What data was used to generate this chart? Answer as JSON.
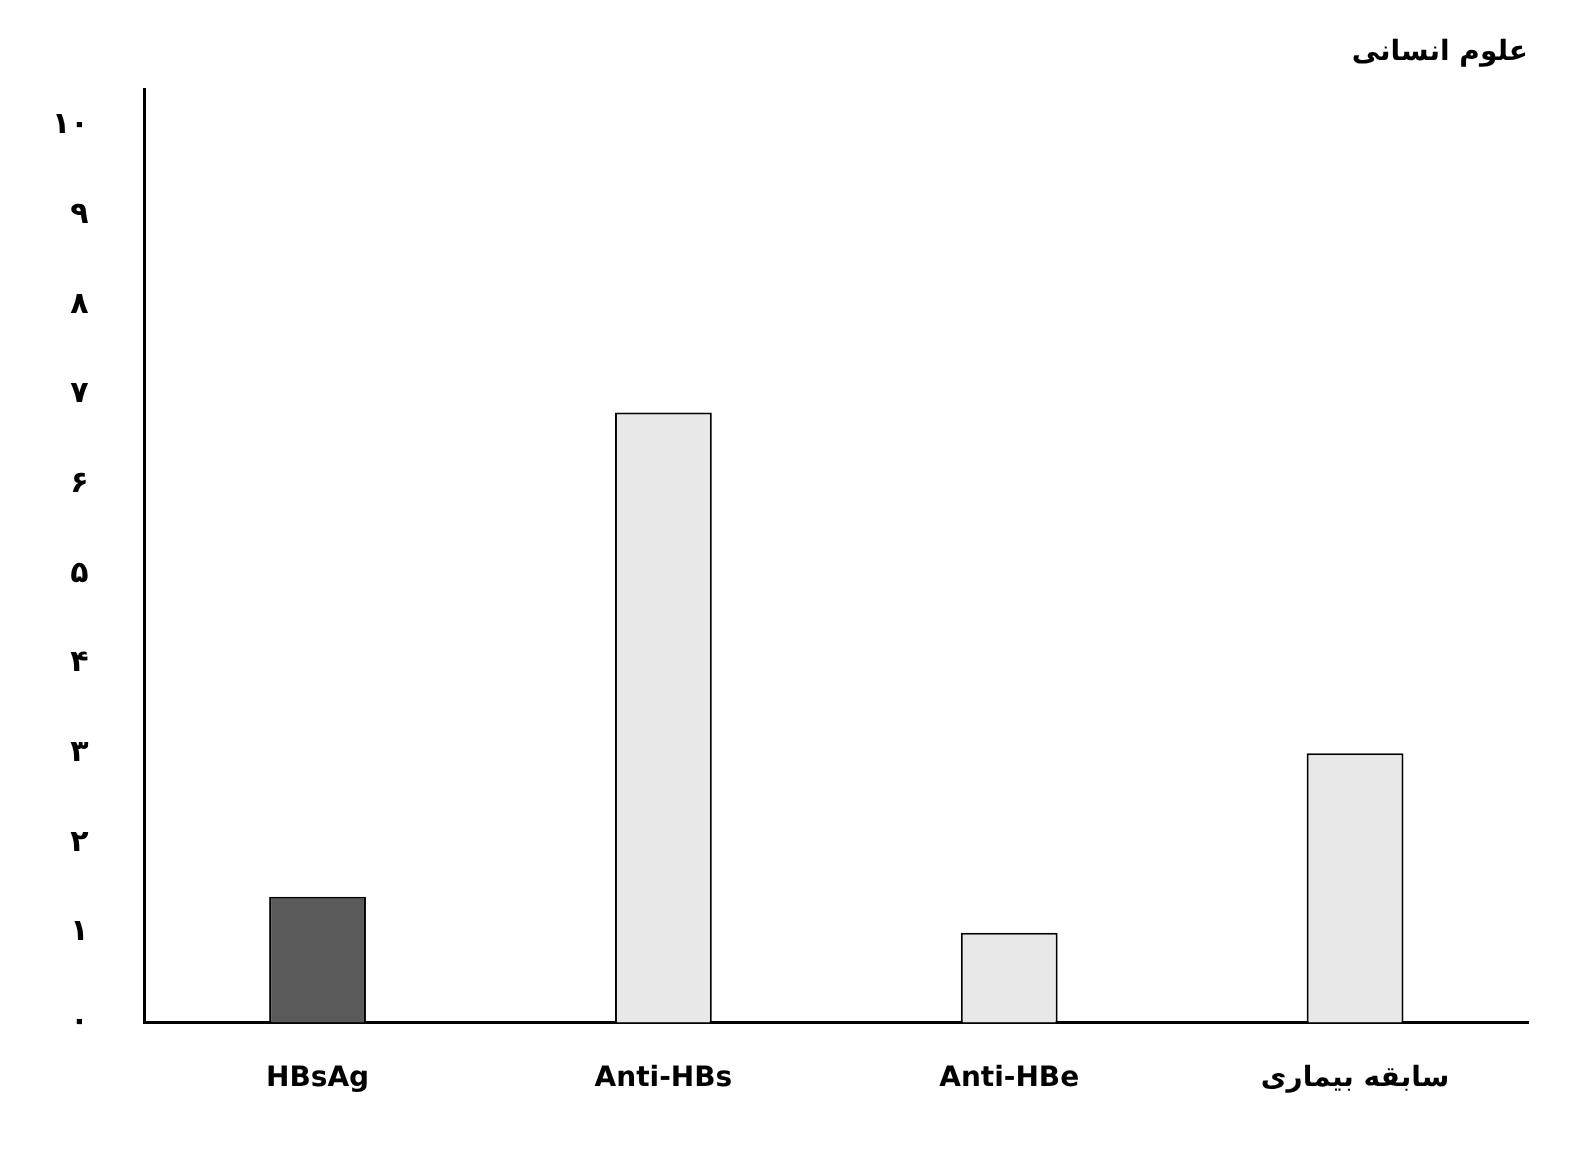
{
  "chart_data": {
    "type": "bar",
    "title": "علوم انسانی",
    "categories": [
      "HBsAg",
      "Anti-HBs",
      "Anti-HBe",
      "سابقه بیماری"
    ],
    "values": [
      1.4,
      6.8,
      1,
      3
    ],
    "colors": [
      "#5a5a5a",
      "#e8e8e8",
      "#e8e8e8",
      "#e8e8e8"
    ],
    "ylim": [
      0,
      10.4
    ],
    "yticks": [
      {
        "value": 0,
        "label": "۰"
      },
      {
        "value": 1,
        "label": "۱"
      },
      {
        "value": 2,
        "label": "۲"
      },
      {
        "value": 3,
        "label": "۳"
      },
      {
        "value": 4,
        "label": "۴"
      },
      {
        "value": 5,
        "label": "۵"
      },
      {
        "value": 6,
        "label": "۶"
      },
      {
        "value": 7,
        "label": "۷"
      },
      {
        "value": 8,
        "label": "۸"
      },
      {
        "value": 9,
        "label": "۹"
      },
      {
        "value": 10,
        "label": "۱۰"
      }
    ],
    "grid": false,
    "legend": false
  }
}
